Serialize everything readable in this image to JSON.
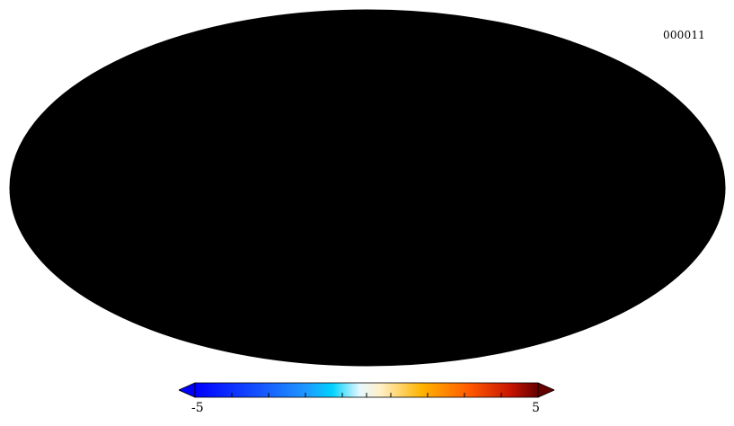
{
  "map": {
    "id_label": "000011",
    "projection": "Mollweide",
    "palette": [
      "#00008c",
      "#0014ff",
      "#1e78ff",
      "#00c8ff",
      "#e6f8ff",
      "#fff0c8",
      "#ffb400",
      "#ff5a00",
      "#d21e00",
      "#640000"
    ]
  },
  "colorbar": {
    "min_label": "-5",
    "max_label": "5",
    "min": -5,
    "max": 5,
    "extend": "both"
  }
}
